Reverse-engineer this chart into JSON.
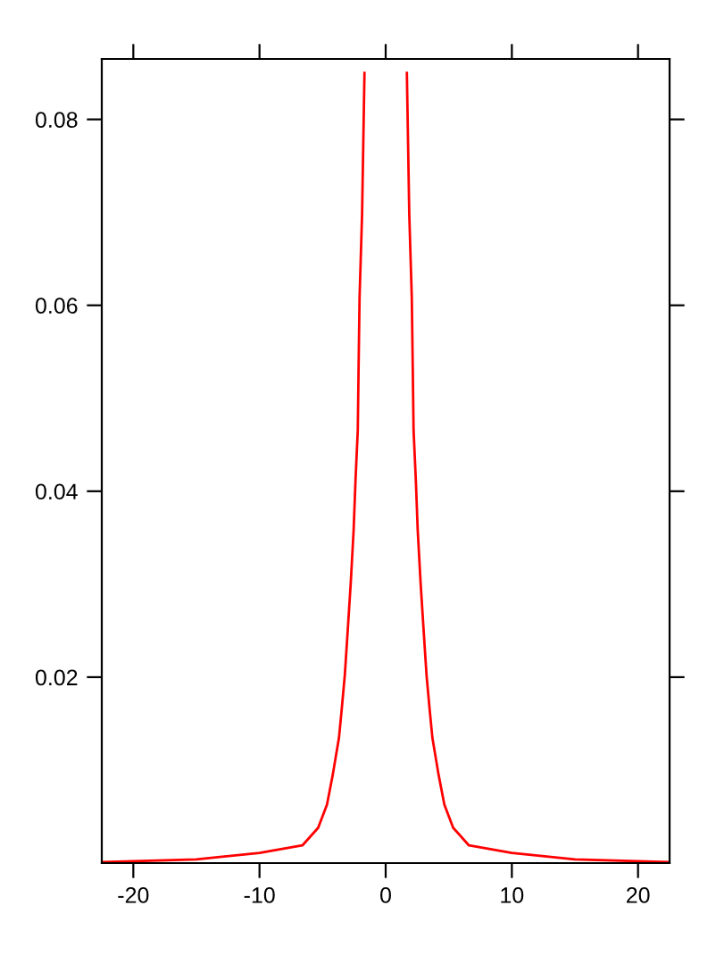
{
  "chart_data": {
    "type": "line",
    "x": [
      -22.5,
      -15,
      -10,
      -6.6,
      -5.35,
      -4.65,
      -4.18,
      -3.7,
      -3.48,
      -3.24,
      -3.0,
      -2.77,
      -2.54,
      -2.39,
      -2.21,
      -2.15,
      -2.07,
      -1.87,
      -1.73,
      -1.68,
      0,
      1.68,
      1.73,
      1.87,
      2.07,
      2.15,
      2.21,
      2.39,
      2.54,
      2.77,
      3.0,
      3.24,
      3.48,
      3.7,
      4.18,
      4.65,
      5.35,
      6.6,
      10,
      15,
      22.5
    ],
    "series": [
      {
        "color": "#ff0000",
        "values": [
          0.0001,
          0.0004,
          0.0011,
          0.0019,
          0.0038,
          0.0063,
          0.0096,
          0.0135,
          0.0166,
          0.0202,
          0.0252,
          0.0301,
          0.0358,
          0.0412,
          0.0466,
          0.0529,
          0.0608,
          0.0698,
          0.081,
          0.085,
          null,
          0.085,
          0.081,
          0.0698,
          0.0608,
          0.0529,
          0.0466,
          0.0412,
          0.0358,
          0.0301,
          0.0252,
          0.0202,
          0.0166,
          0.0135,
          0.0096,
          0.0063,
          0.0038,
          0.0019,
          0.0011,
          0.0004,
          0.0001
        ]
      }
    ],
    "xlim": [
      -22.5,
      22.5
    ],
    "ylim": [
      0,
      0.0865
    ],
    "xticks": [
      -20,
      -10,
      0,
      10,
      20
    ],
    "yticks": [
      0.02,
      0.04,
      0.06,
      0.08
    ],
    "grid": false,
    "legend": false
  }
}
